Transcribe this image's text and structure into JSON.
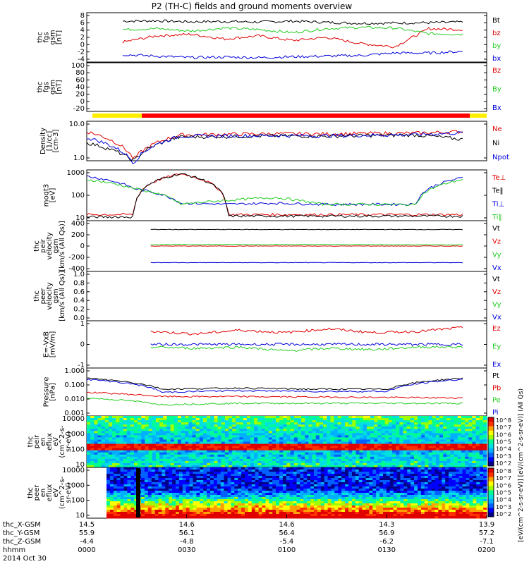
{
  "title": "P2 (TH-C) fields and ground moments overview",
  "colors": {
    "black": "#000000",
    "red": "#e00000",
    "green": "#22cc22",
    "blue": "#0000dd",
    "yellow": "#ffee00",
    "barred": "#ff0000"
  },
  "chart_data": [
    {
      "panel": "fgs",
      "type": "line",
      "ylabel": [
        "thc",
        "fgs",
        "gsm",
        "[nT]"
      ],
      "yticks": [
        "8",
        "6",
        "4",
        "2",
        "0",
        "-2",
        "-4"
      ],
      "ylim": [
        -5,
        9
      ],
      "series": [
        {
          "name": "Bt",
          "color": "#000000",
          "values": [
            7.2,
            7.3,
            7.0,
            7.1,
            6.9,
            7.2,
            6.8,
            6.5,
            6.6,
            6.7,
            6.9
          ]
        },
        {
          "name": "bz",
          "color": "#e00000",
          "values": [
            0.5,
            2.5,
            3.0,
            1.5,
            2.5,
            1.0,
            2.0,
            0.0,
            -1.0,
            4.8,
            4.5
          ]
        },
        {
          "name": "by",
          "color": "#22cc22",
          "values": [
            4.5,
            4.8,
            4.0,
            5.0,
            4.5,
            3.5,
            4.8,
            5.2,
            5.0,
            3.2,
            3.0
          ]
        },
        {
          "name": "bx",
          "color": "#0000dd",
          "values": [
            -3.5,
            -4.0,
            -4.5,
            -4.3,
            -4.5,
            -4.2,
            -4.0,
            -3.8,
            -3.0,
            -3.0,
            -2.5
          ]
        }
      ]
    },
    {
      "panel": "fgs2",
      "type": "line",
      "ylabel": [
        "thc",
        "fgs",
        "gsm",
        "[nT]"
      ],
      "yticks": [
        "100",
        "80",
        "60",
        "40",
        "20",
        "0",
        "-20"
      ],
      "ylim": [
        -35,
        100
      ],
      "series": [
        {
          "name": "Bz",
          "color": "#e00000",
          "values": []
        },
        {
          "name": "By",
          "color": "#22cc22",
          "values": []
        },
        {
          "name": "Bx",
          "color": "#0000dd",
          "values": []
        }
      ]
    },
    {
      "panel": "density",
      "type": "line",
      "ylabel": [
        "Density",
        "[1/cc]",
        "[cm-3]"
      ],
      "yticks": [
        "10.0",
        "1.0"
      ],
      "log": true,
      "series": [
        {
          "name": "Ne",
          "color": "#e00000",
          "values": [
            6.0,
            0.9,
            4.8,
            5.0,
            5.2,
            5.1,
            5.3,
            5.4,
            6.0
          ]
        },
        {
          "name": "Ni",
          "color": "#000000",
          "values": [
            2.8,
            0.8,
            4.2,
            4.3,
            4.5,
            4.4,
            4.6,
            4.8,
            3.5
          ]
        },
        {
          "name": "Npot",
          "color": "#0000dd",
          "values": [
            4.0,
            0.7,
            4.4,
            4.5,
            4.6,
            4.5,
            4.7,
            4.9,
            5.5
          ]
        }
      ]
    },
    {
      "panel": "temperature",
      "type": "line",
      "ylabel": [
        "moqt3",
        "[eV]"
      ],
      "yticks": [
        "1000",
        "100",
        "10"
      ],
      "log": true,
      "series": [
        {
          "name": "Te⊥",
          "color": "#e00000",
          "values": [
            14,
            14,
            900,
            14,
            14,
            14,
            14,
            14,
            14
          ]
        },
        {
          "name": "Te‖",
          "color": "#000000",
          "values": [
            11,
            11,
            900,
            12,
            12,
            12,
            12,
            12,
            12
          ]
        },
        {
          "name": "Ti⊥",
          "color": "#0000dd",
          "values": [
            700,
            200,
            45,
            40,
            45,
            40,
            40,
            40,
            600
          ]
        },
        {
          "name": "Ti‖",
          "color": "#22cc22",
          "values": [
            500,
            200,
            40,
            60,
            80,
            40,
            40,
            38,
            500
          ]
        }
      ]
    },
    {
      "panel": "peir-velocity",
      "type": "line",
      "ylabel": [
        "thc",
        "peir",
        "velocity",
        "gsm",
        "[km/s (All Qs)]"
      ],
      "yticks": [
        "400",
        "200",
        "0",
        "-200",
        "-400"
      ],
      "ylim": [
        -450,
        450
      ],
      "series": [
        {
          "name": "Vt",
          "color": "#000000",
          "values": [
            330,
            330,
            330
          ]
        },
        {
          "name": "Vz",
          "color": "#e00000",
          "values": [
            0,
            0,
            0
          ]
        },
        {
          "name": "Vy",
          "color": "#22cc22",
          "values": [
            30,
            30,
            25
          ]
        },
        {
          "name": "Vx",
          "color": "#0000dd",
          "values": [
            -330,
            -330,
            -330
          ]
        }
      ]
    },
    {
      "panel": "peer-velocity",
      "type": "line",
      "ylabel": [
        "thc",
        "peer",
        "velocity",
        "gsm",
        "[km/s (All Qs)]"
      ],
      "yticks": [
        "1.0",
        "0.8",
        "0.6",
        "0.4",
        "0.2",
        "0.0"
      ],
      "ylim": [
        0,
        1
      ],
      "series": [
        {
          "name": "Vt",
          "color": "#000000",
          "values": []
        },
        {
          "name": "Vz",
          "color": "#e00000",
          "values": []
        },
        {
          "name": "Vy",
          "color": "#22cc22",
          "values": []
        },
        {
          "name": "Vx",
          "color": "#0000dd",
          "values": []
        }
      ]
    },
    {
      "panel": "efield",
      "type": "line",
      "ylabel": [
        "E=-VxB",
        "[mV/m]"
      ],
      "yticks": [
        "1",
        "0",
        "-1"
      ],
      "ylim": [
        -1.6,
        1.6
      ],
      "series": [
        {
          "name": "Ez",
          "color": "#e00000",
          "values": [
            1.0,
            0.8,
            1.1,
            0.9,
            1.2,
            0.9,
            1.0,
            1.3
          ]
        },
        {
          "name": "Ey",
          "color": "#22cc22",
          "values": [
            -0.2,
            -0.3,
            -0.2,
            -0.5,
            -0.3,
            -0.4,
            -0.2,
            -0.2
          ]
        },
        {
          "name": "Ex",
          "color": "#0000dd",
          "values": [
            0.0,
            0.0,
            0.0,
            0.0,
            0.0,
            0.0,
            0.0,
            0.0
          ]
        }
      ]
    },
    {
      "panel": "pressure",
      "type": "line",
      "ylabel": [
        "Pressure",
        "[nPa]"
      ],
      "yticks": [
        "1.000",
        "0.100",
        "0.010",
        "0.001"
      ],
      "log": true,
      "series": [
        {
          "name": "Pt",
          "color": "#000000",
          "values": [
            0.3,
            0.05,
            0.06,
            0.05,
            0.05,
            0.3
          ]
        },
        {
          "name": "Pb",
          "color": "#e00000",
          "values": [
            0.03,
            0.015,
            0.015,
            0.014,
            0.013,
            0.012
          ]
        },
        {
          "name": "Pe",
          "color": "#22cc22",
          "values": [
            0.012,
            0.004,
            0.005,
            0.005,
            0.005,
            0.005
          ]
        },
        {
          "name": "Pi",
          "color": "#0000dd",
          "values": [
            0.25,
            0.03,
            0.04,
            0.035,
            0.035,
            0.25
          ]
        }
      ]
    },
    {
      "panel": "peir-spectrogram",
      "type": "heatmap",
      "ylabel": [
        "thc",
        "peir",
        "en",
        "eflux",
        "eV",
        "(cm^2-s-",
        "sr-eV)"
      ],
      "yticks": [
        "10000",
        "1000",
        "100",
        "10"
      ]
    },
    {
      "panel": "peer-spectrogram",
      "type": "heatmap",
      "ylabel": [
        "thc",
        "peer",
        "en",
        "eflux",
        "eV",
        "(cm^2-s-",
        "sr-eV)"
      ],
      "yticks": [
        "10000",
        "1000",
        "100",
        "10"
      ]
    }
  ],
  "colorbar": {
    "label": "[eV/(cm^2-s-sr-eV)] [eV/(cm^2-s-sr-eV)] (All Qs)",
    "ticks_top": [
      "10^8",
      "10^7",
      "10^6",
      "10^5",
      "10^4",
      "10^3",
      "10^2"
    ],
    "ticks_bottom": [
      "10^8",
      "10^7",
      "10^6",
      "10^5",
      "10^4",
      "10^3",
      "10^2"
    ]
  },
  "xaxis": {
    "rows": [
      {
        "label": "thc_X-GSM",
        "values": [
          "14.5",
          "14.6",
          "14.6",
          "14.3",
          "13.9"
        ]
      },
      {
        "label": "thc_Y-GSM",
        "values": [
          "55.9",
          "56.1",
          "56.4",
          "56.9",
          "57.2"
        ]
      },
      {
        "label": "thc_Z-GSM",
        "values": [
          "-4.4",
          "-4.8",
          "-5.4",
          "-6.2",
          "-7.1"
        ]
      },
      {
        "label": "hhmm",
        "values": [
          "0000",
          "0030",
          "0100",
          "0130",
          "0200"
        ]
      }
    ],
    "date": "2014 Oct 30"
  }
}
